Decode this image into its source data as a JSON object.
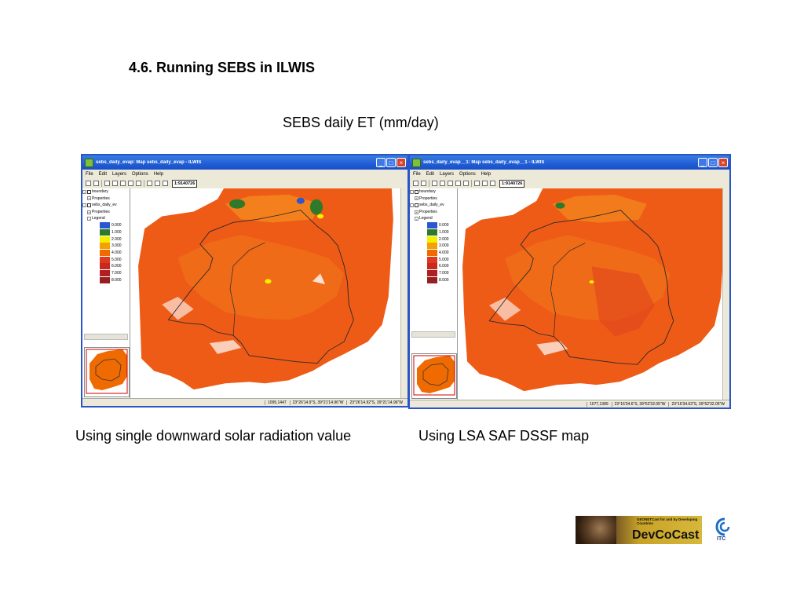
{
  "slide": {
    "section_title": "4.6. Running SEBS in ILWIS",
    "subtitle": "SEBS daily ET (mm/day)",
    "caption_left": "Using single downward solar radiation value",
    "caption_right": "Using LSA SAF DSSF map"
  },
  "menu": [
    "File",
    "Edit",
    "Layers",
    "Options",
    "Help"
  ],
  "legend_values": [
    "0.000",
    "1.000",
    "2.000",
    "3.000",
    "4.000",
    "5.000",
    "6.000",
    "7.000",
    "8.000"
  ],
  "legend_colors": [
    "#2b57d1",
    "#2f7a2a",
    "#f2f000",
    "#f5a000",
    "#ef6a00",
    "#e03a1e",
    "#c9281e",
    "#b02020",
    "#962020"
  ],
  "window1": {
    "title": "sebs_daily_evap: Map sebs_daily_evap - ILWIS",
    "scale": "1:9140726",
    "tree": {
      "boundary": "boundary",
      "properties": "Properties",
      "map_layer": "sebs_daily_ev",
      "properties2": "Properties",
      "legend": "Legend"
    },
    "status_rowcol": "1095,1447",
    "status_coord1": "23°26'14.9\"S, 39°21'14.96\"W",
    "status_coord2": "23°26'14.92\"S, 39°21'14.96\"W"
  },
  "window2": {
    "title": "sebs_daily_evap__1: Map sebs_daily_evap__1 - ILWIS",
    "scale": "1:9140726",
    "tree": {
      "boundary": "boundary",
      "properties": "Properties",
      "map_layer": "sebs_daily_ev",
      "properties2": "Properties",
      "legend": "Legend"
    },
    "status_rowcol": "1077,1389",
    "status_coord1": "23°16'34.6\"S, 39°52'32.05\"W",
    "status_coord2": "23°16'34.63\"S, 39°52'32.05\"W"
  },
  "logos": {
    "devcocast_small": "GEONETCast for and by Developing Countries",
    "devcocast": "DevCoCast",
    "itc": "ITC"
  }
}
